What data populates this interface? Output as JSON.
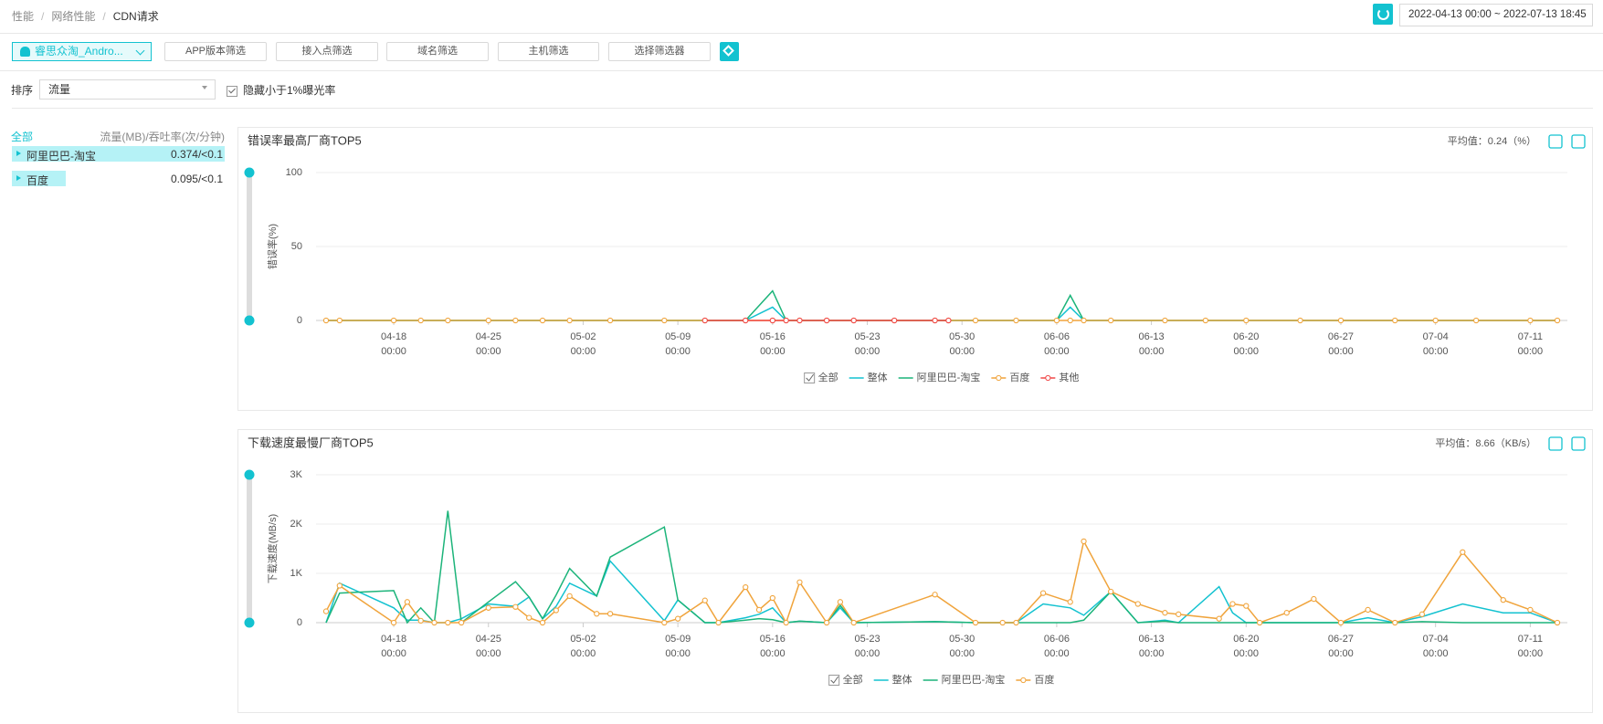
{
  "breadcrumb": [
    "性能",
    "网络性能",
    "CDN请求"
  ],
  "date_range": "2022-04-13 00:00 ~ 2022-07-13 18:45",
  "app_select": "睿思众淘_Andro...",
  "filters": [
    "APP版本筛选",
    "接入点筛选",
    "域名筛选",
    "主机筛选",
    "选择筛选器"
  ],
  "sort": {
    "label": "排序",
    "value": "流量"
  },
  "hide_option": "隐藏小于1%曝光率",
  "vendor_list": {
    "all": "全部",
    "header": "流量(MB)/吞吐率(次/分钟)",
    "rows": [
      {
        "name": "阿里巴巴-淘宝",
        "value": "0.374/<0.1"
      },
      {
        "name": "百度",
        "value": "0.095/<0.1"
      }
    ]
  },
  "chart_data": [
    {
      "type": "line",
      "title": "错误率最高厂商TOP5",
      "average": "平均值：0.24（%）",
      "y_label": "错误率(%)",
      "legend_all": "全部",
      "xlim": [
        "04-13 00:00",
        "07-13 00:00"
      ],
      "xticks": [
        "04-18 00:00",
        "04-25 00:00",
        "05-02 00:00",
        "05-09 00:00",
        "05-16 00:00",
        "05-23 00:00",
        "05-30 00:00",
        "06-06 00:00",
        "06-13 00:00",
        "06-20 00:00",
        "06-27 00:00",
        "07-04 00:00",
        "07-11 00:00"
      ],
      "ylim": [
        0,
        100
      ],
      "yticks": [
        0,
        50,
        100
      ],
      "grid": true,
      "x": [
        "04-13 00:00",
        "04-14 00:00",
        "04-18 00:00",
        "04-20 00:00",
        "04-22 00:00",
        "04-25 00:00",
        "04-27 00:00",
        "04-29 00:00",
        "05-01 00:00",
        "05-04 00:00",
        "05-08 00:00",
        "05-11 00:00",
        "05-14 00:00",
        "05-16 00:00",
        "05-17 00:00",
        "05-18 00:00",
        "05-20 00:00",
        "05-22 00:00",
        "05-25 00:00",
        "05-28 00:00",
        "05-29 00:00",
        "05-31 00:00",
        "06-03 00:00",
        "06-06 00:00",
        "06-07 00:00",
        "06-08 00:00",
        "06-10 00:00",
        "06-14 00:00",
        "06-17 00:00",
        "06-20 00:00",
        "06-24 00:00",
        "06-27 00:00",
        "07-01 00:00",
        "07-04 00:00",
        "07-07 00:00",
        "07-11 00:00",
        "07-13 00:00"
      ],
      "series": [
        {
          "name": "整体",
          "color": "#13c2d0",
          "marker": false,
          "values": [
            0,
            0,
            0,
            0,
            0,
            0,
            0,
            0,
            0,
            0,
            0,
            0,
            0,
            9,
            0,
            0,
            0,
            0,
            0,
            0,
            0,
            0,
            0,
            0,
            9,
            0,
            0,
            0,
            0,
            0,
            0,
            0,
            0,
            0,
            0,
            0,
            0
          ]
        },
        {
          "name": "阿里巴巴-淘宝",
          "color": "#1cb47a",
          "marker": false,
          "values": [
            0,
            0,
            0,
            0,
            0,
            0,
            0,
            0,
            0,
            0,
            0,
            0,
            0,
            20,
            0,
            0,
            0,
            0,
            0,
            0,
            0,
            0,
            0,
            0,
            17,
            0,
            0,
            0,
            0,
            0,
            0,
            0,
            0,
            0,
            0,
            0,
            0
          ]
        },
        {
          "name": "百度",
          "color": "#f0a43c",
          "marker": true,
          "values": [
            0,
            0,
            0,
            0,
            0,
            0,
            0,
            0,
            0,
            0,
            0,
            0,
            0,
            0,
            0,
            0,
            0,
            0,
            0,
            0,
            0,
            0,
            0,
            0,
            0,
            0,
            0,
            0,
            0,
            0,
            0,
            0,
            0,
            0,
            0,
            0,
            0
          ]
        },
        {
          "name": "其他",
          "color": "#f04848",
          "marker": true,
          "values": [
            null,
            null,
            null,
            null,
            null,
            null,
            null,
            null,
            null,
            null,
            null,
            0,
            0,
            0,
            0,
            0,
            0,
            0,
            0,
            0,
            0,
            null,
            null,
            null,
            null,
            null,
            null,
            null,
            null,
            null,
            null,
            null,
            null,
            null,
            null,
            null,
            null
          ]
        }
      ]
    },
    {
      "type": "line",
      "title": "下载速度最慢厂商TOP5",
      "average": "平均值：8.66（KB/s）",
      "y_label": "下载速度(MB/s)",
      "legend_all": "全部",
      "xlim": [
        "04-13 00:00",
        "07-13 00:00"
      ],
      "xticks": [
        "04-18 00:00",
        "04-25 00:00",
        "05-02 00:00",
        "05-09 00:00",
        "05-16 00:00",
        "05-23 00:00",
        "05-30 00:00",
        "06-06 00:00",
        "06-13 00:00",
        "06-20 00:00",
        "06-27 00:00",
        "07-04 00:00",
        "07-11 00:00"
      ],
      "ylim": [
        0,
        3000
      ],
      "yticks": [
        0,
        {
          "value": 1000,
          "label": "1K"
        },
        {
          "value": 2000,
          "label": "2K"
        },
        {
          "value": 3000,
          "label": "3K"
        }
      ],
      "grid": true,
      "x": [
        "04-13 00:00",
        "04-14 00:00",
        "04-18 00:00",
        "04-19 00:00",
        "04-20 00:00",
        "04-21 00:00",
        "04-22 00:00",
        "04-23 00:00",
        "04-25 00:00",
        "04-27 00:00",
        "04-28 00:00",
        "04-29 00:00",
        "04-30 00:00",
        "05-01 00:00",
        "05-03 00:00",
        "05-04 00:00",
        "05-08 00:00",
        "05-09 00:00",
        "05-11 00:00",
        "05-12 00:00",
        "05-14 00:00",
        "05-15 00:00",
        "05-16 00:00",
        "05-17 00:00",
        "05-18 00:00",
        "05-20 00:00",
        "05-21 00:00",
        "05-22 00:00",
        "05-28 00:00",
        "05-31 00:00",
        "06-02 00:00",
        "06-03 00:00",
        "06-05 00:00",
        "06-07 00:00",
        "06-08 00:00",
        "06-10 00:00",
        "06-12 00:00",
        "06-14 00:00",
        "06-15 00:00",
        "06-18 00:00",
        "06-19 00:00",
        "06-20 00:00",
        "06-21 00:00",
        "06-23 00:00",
        "06-25 00:00",
        "06-27 00:00",
        "06-29 00:00",
        "07-01 00:00",
        "07-03 00:00",
        "07-06 00:00",
        "07-09 00:00",
        "07-11 00:00",
        "07-13 00:00"
      ],
      "series": [
        {
          "name": "整体",
          "color": "#13c2d0",
          "marker": false,
          "values": [
            0,
            800,
            300,
            50,
            50,
            0,
            0,
            80,
            380,
            330,
            520,
            80,
            330,
            800,
            540,
            1250,
            40,
            460,
            0,
            0,
            100,
            170,
            300,
            0,
            30,
            0,
            300,
            0,
            20,
            0,
            0,
            0,
            380,
            300,
            150,
            630,
            0,
            50,
            0,
            730,
            200,
            0,
            0,
            0,
            0,
            0,
            100,
            0,
            120,
            380,
            200,
            200,
            0
          ]
        },
        {
          "name": "阿里巴巴-淘宝",
          "color": "#1cb47a",
          "marker": false,
          "values": [
            0,
            600,
            650,
            0,
            300,
            0,
            2270,
            0,
            420,
            830,
            520,
            80,
            560,
            1100,
            540,
            1330,
            1940,
            460,
            0,
            0,
            50,
            80,
            60,
            0,
            30,
            0,
            350,
            0,
            20,
            0,
            0,
            0,
            0,
            0,
            50,
            630,
            0,
            30,
            0,
            0,
            0,
            0,
            0,
            0,
            0,
            0,
            0,
            0,
            20,
            0,
            0,
            0,
            0
          ]
        },
        {
          "name": "百度",
          "color": "#f0a43c",
          "marker": true,
          "values": [
            230,
            750,
            0,
            420,
            40,
            0,
            0,
            0,
            300,
            320,
            100,
            0,
            250,
            540,
            180,
            180,
            0,
            80,
            450,
            0,
            720,
            260,
            500,
            0,
            820,
            0,
            420,
            0,
            570,
            0,
            0,
            0,
            600,
            420,
            1650,
            630,
            380,
            200,
            170,
            80,
            380,
            340,
            0,
            200,
            480,
            0,
            260,
            0,
            170,
            1430,
            460,
            260,
            0
          ]
        }
      ]
    }
  ]
}
